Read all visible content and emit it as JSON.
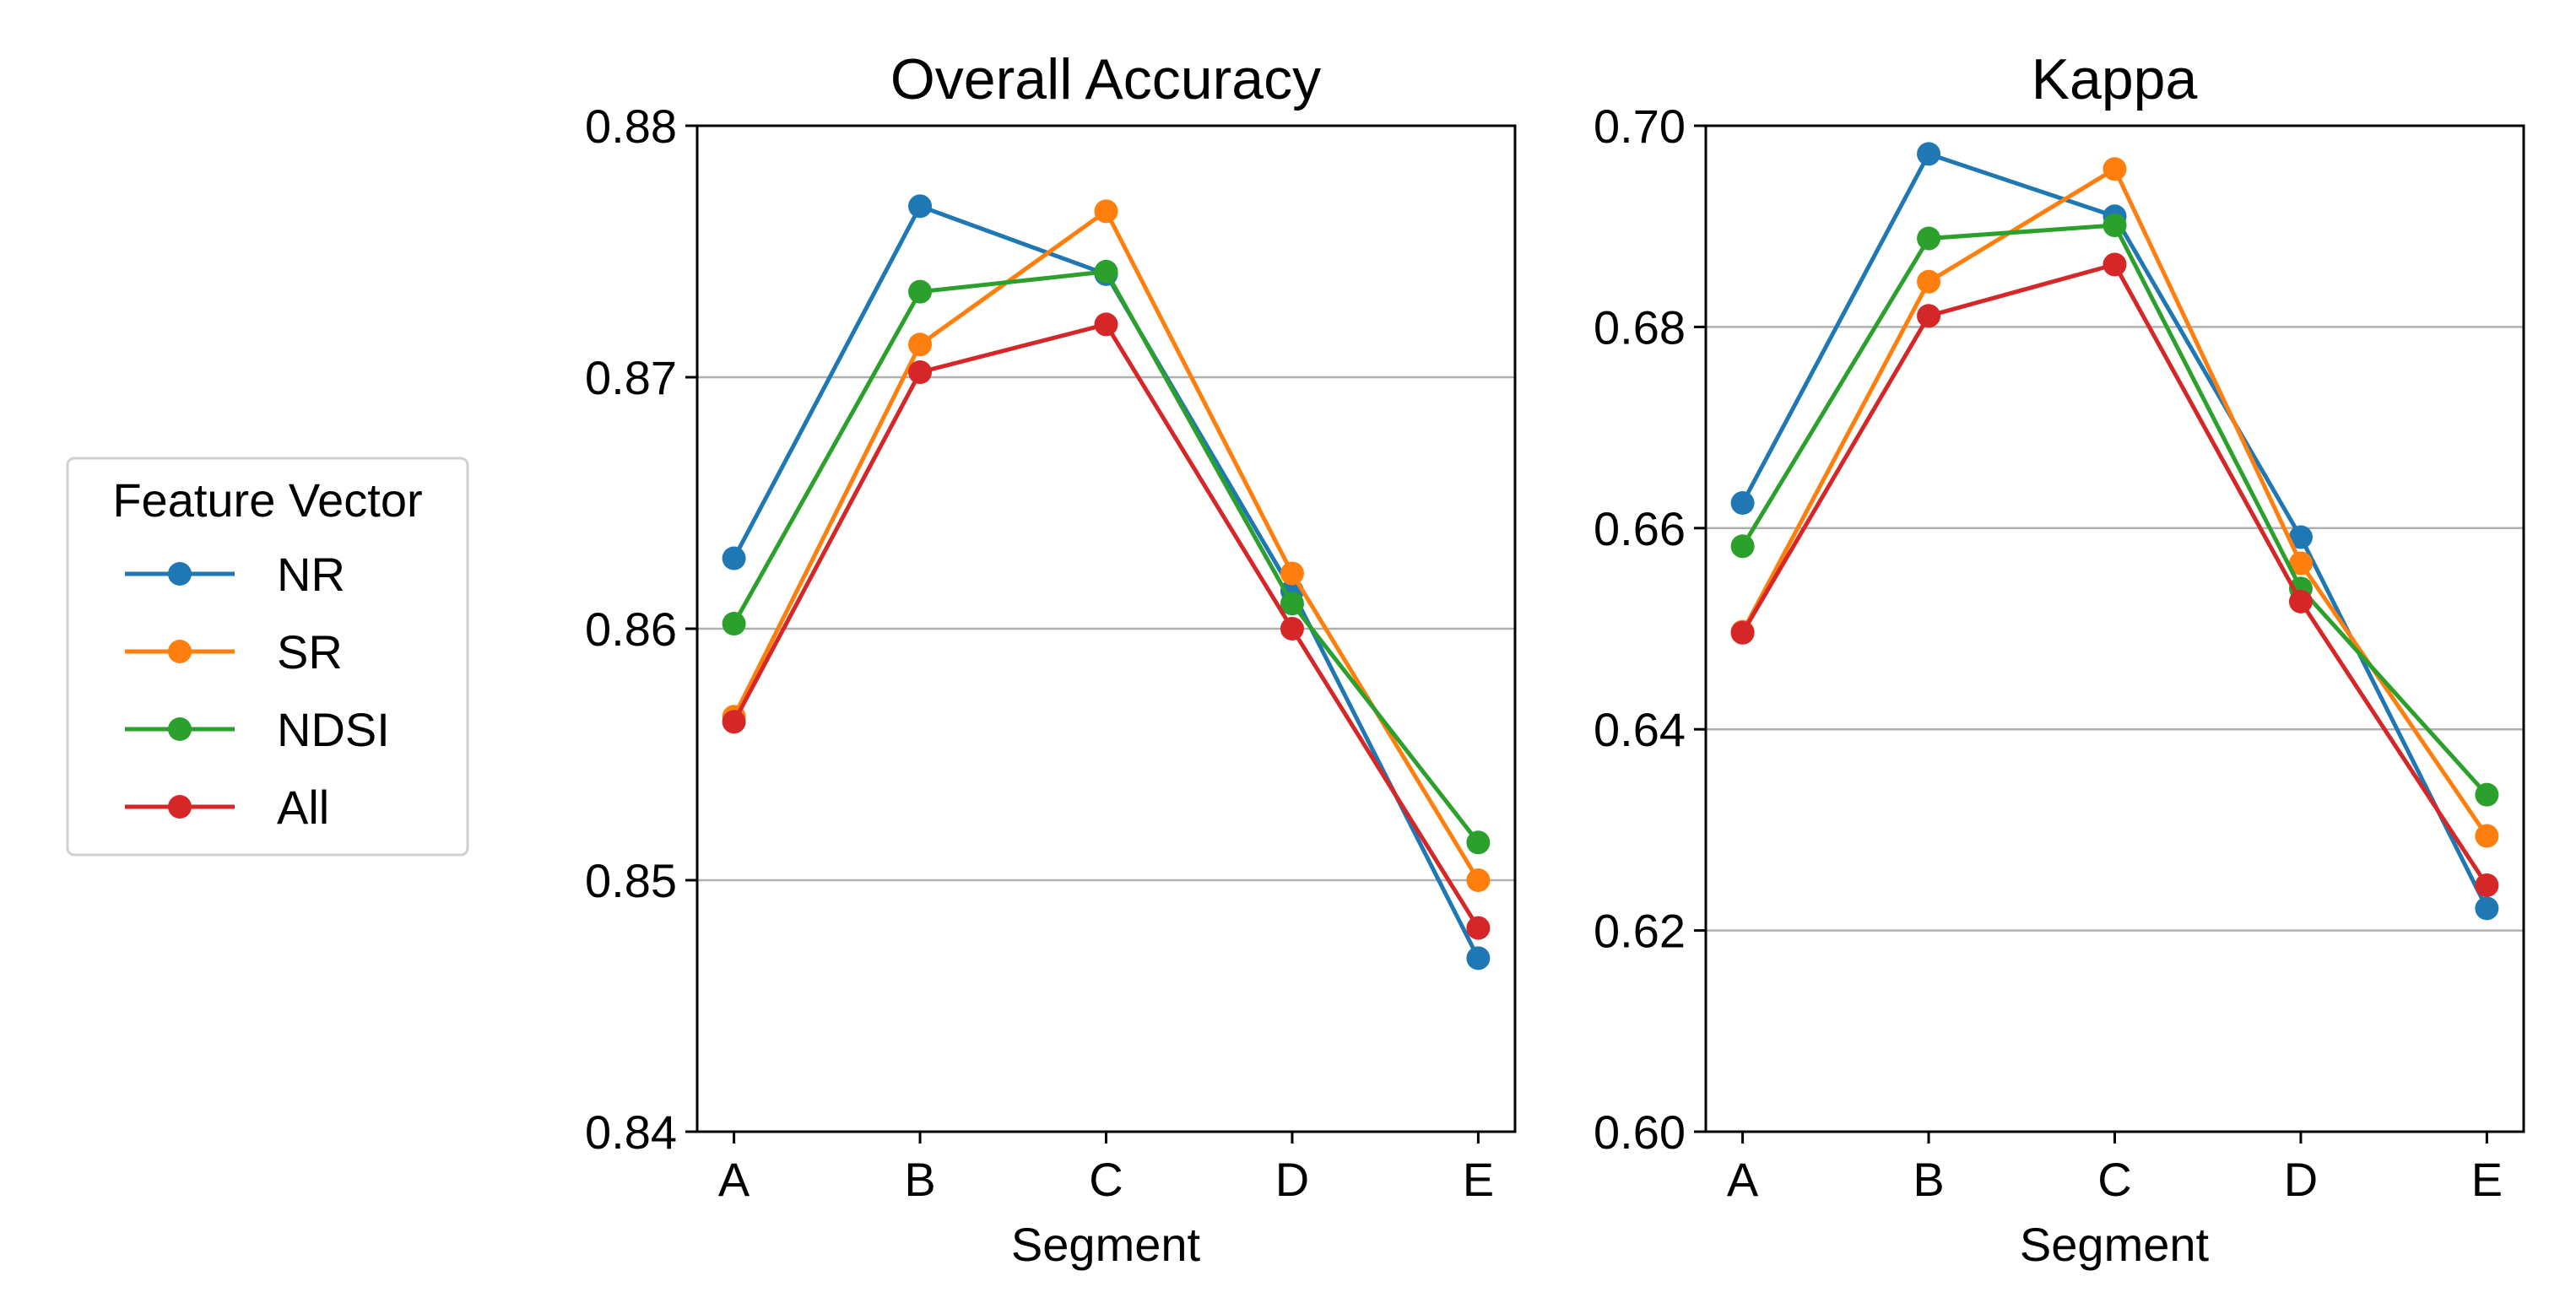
{
  "legend": {
    "title": "Feature Vector",
    "entries": [
      {
        "name": "NR",
        "color": "#1f77b4"
      },
      {
        "name": "SR",
        "color": "#ff7f0e"
      },
      {
        "name": "NDSI",
        "color": "#2ca02c"
      },
      {
        "name": "All",
        "color": "#d62728"
      }
    ]
  },
  "chart_data": [
    {
      "type": "line",
      "title": "Overall Accuracy",
      "xlabel": "Segment",
      "ylabel": "",
      "categories": [
        "A",
        "B",
        "C",
        "D",
        "E"
      ],
      "ylim": [
        0.84,
        0.88
      ],
      "yticks": [
        0.84,
        0.85,
        0.86,
        0.87,
        0.88
      ],
      "ytick_labels": [
        "0.84",
        "0.85",
        "0.86",
        "0.87",
        "0.88"
      ],
      "grid": "y",
      "series": [
        {
          "name": "NR",
          "color": "#1f77b4",
          "values": [
            0.8628,
            0.8768,
            0.8741,
            0.8615,
            0.8469
          ]
        },
        {
          "name": "SR",
          "color": "#ff7f0e",
          "values": [
            0.8565,
            0.8713,
            0.8766,
            0.8622,
            0.85
          ]
        },
        {
          "name": "NDSI",
          "color": "#2ca02c",
          "values": [
            0.8602,
            0.8734,
            0.8742,
            0.861,
            0.8515
          ]
        },
        {
          "name": "All",
          "color": "#d62728",
          "values": [
            0.8563,
            0.8702,
            0.8721,
            0.86,
            0.8481
          ]
        }
      ]
    },
    {
      "type": "line",
      "title": "Kappa",
      "xlabel": "Segment",
      "ylabel": "",
      "categories": [
        "A",
        "B",
        "C",
        "D",
        "E"
      ],
      "ylim": [
        0.6,
        0.7
      ],
      "yticks": [
        0.6,
        0.62,
        0.64,
        0.66,
        0.68,
        0.7
      ],
      "ytick_labels": [
        "0.60",
        "0.62",
        "0.64",
        "0.66",
        "0.68",
        "0.70"
      ],
      "grid": "y",
      "series": [
        {
          "name": "NR",
          "color": "#1f77b4",
          "values": [
            0.6625,
            0.6972,
            0.691,
            0.6591,
            0.6222
          ]
        },
        {
          "name": "SR",
          "color": "#ff7f0e",
          "values": [
            0.6497,
            0.6845,
            0.6957,
            0.6565,
            0.6294
          ]
        },
        {
          "name": "NDSI",
          "color": "#2ca02c",
          "values": [
            0.6582,
            0.6888,
            0.6901,
            0.654,
            0.6335
          ]
        },
        {
          "name": "All",
          "color": "#d62728",
          "values": [
            0.6496,
            0.6811,
            0.6862,
            0.6527,
            0.6245
          ]
        }
      ]
    }
  ]
}
